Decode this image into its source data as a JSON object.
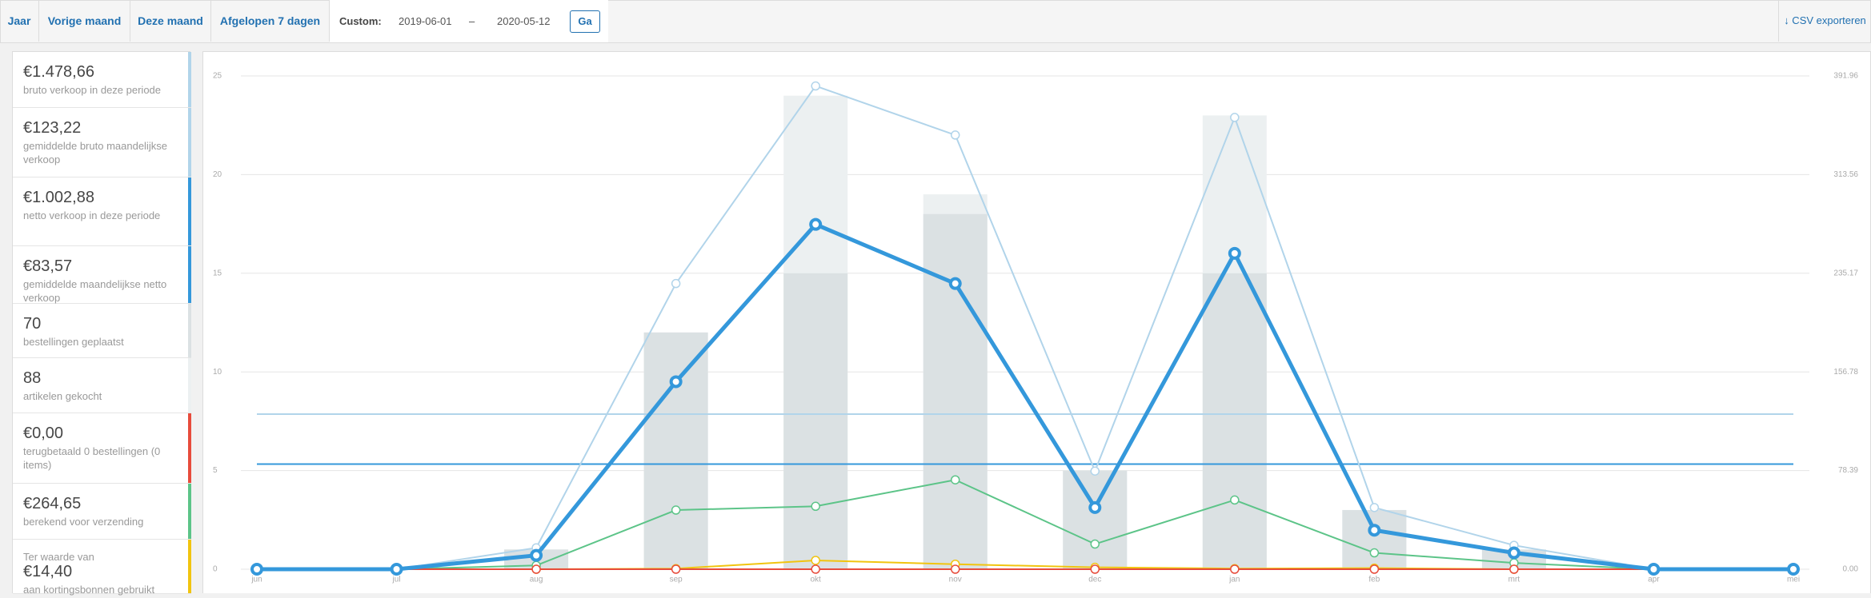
{
  "nav": {
    "tabs": [
      "Jaar",
      "Vorige maand",
      "Deze maand",
      "Afgelopen 7 dagen"
    ],
    "custom_label": "Custom:",
    "start": "2019-06-01",
    "separator": "–",
    "end": "2020-05-12",
    "go": "Ga",
    "export": "↓ CSV exporteren"
  },
  "summary": [
    {
      "amount": "€1.478,66",
      "label": "bruto verkoop in deze periode",
      "color": "#b1d4ea"
    },
    {
      "amount": "€123,22",
      "label": "gemiddelde bruto maandelijkse verkoop",
      "color": "#b1d4ea"
    },
    {
      "amount": "€1.002,88",
      "label": "netto verkoop in deze periode",
      "color": "#3498db"
    },
    {
      "amount": "€83,57",
      "label": "gemiddelde maandelijkse netto verkoop",
      "color": "#3498db"
    },
    {
      "amount": "70",
      "label": "bestellingen geplaatst",
      "color": "#dbe1e3"
    },
    {
      "amount": "88",
      "label": "artikelen gekocht",
      "color": "#ecf0f1"
    },
    {
      "amount": "€0,00",
      "label": "terugbetaald 0 bestellingen (0 items)",
      "color": "#e74c3c"
    },
    {
      "amount": "€264,65",
      "label": "berekend voor verzending",
      "color": "#5cc488"
    },
    {
      "prefix": "Ter waarde van",
      "amount": "€14,40",
      "label": "aan kortingsbonnen gebruikt",
      "color": "#f1c40f"
    }
  ],
  "chart_data": {
    "type": "line",
    "categories": [
      "jun",
      "jul",
      "aug",
      "sep",
      "okt",
      "nov",
      "dec",
      "jan",
      "feb",
      "mrt",
      "apr",
      "mei"
    ],
    "ylim": [
      0,
      25
    ],
    "yticks": [
      0,
      5,
      10,
      15,
      20,
      25
    ],
    "y2lim": [
      0,
      391.96
    ],
    "y2ticks": [
      {
        "value": 0,
        "label": "0.00"
      },
      78.39,
      156.78,
      235.17,
      313.56,
      391.96
    ],
    "grid": true,
    "bars": [
      {
        "color": "#ecf0f1",
        "values": [
          0,
          0,
          1,
          12,
          24,
          19,
          5,
          23,
          3,
          1,
          0,
          0
        ]
      },
      {
        "color": "#dbe1e3",
        "values": [
          0,
          0,
          1,
          12,
          15,
          18,
          5,
          15,
          3,
          1,
          0,
          0
        ]
      }
    ],
    "averages": [
      {
        "color": "#b1d4ea",
        "value": 123.22,
        "axis": "y2"
      },
      {
        "color": "#3498db",
        "value": 83.57,
        "axis": "y2"
      }
    ],
    "series": [
      {
        "color": "#b1d4ea",
        "width": 2,
        "axis": "y2",
        "values": [
          0,
          0,
          17,
          227,
          384,
          345,
          78,
          359,
          49,
          19,
          0,
          0
        ]
      },
      {
        "color": "#5cc488",
        "width": 2,
        "axis": "y2",
        "values": [
          0,
          0,
          3,
          47,
          50,
          71,
          20,
          55,
          13,
          5,
          0,
          0
        ]
      },
      {
        "color": "#f1c40f",
        "width": 2,
        "axis": "y2",
        "values": [
          0,
          0,
          0,
          0.5,
          7,
          4,
          1.5,
          0.5,
          0.9,
          0,
          0,
          0
        ]
      },
      {
        "color": "#e74c3c",
        "width": 2,
        "axis": "y2",
        "values": [
          0,
          0,
          0,
          0,
          0,
          0,
          0,
          0,
          0,
          0,
          0,
          0
        ]
      },
      {
        "color": "#3498db",
        "width": 5,
        "axis": "y2",
        "values": [
          0,
          0,
          11,
          149,
          274,
          227,
          49,
          251,
          31,
          13,
          0,
          0
        ]
      }
    ]
  }
}
